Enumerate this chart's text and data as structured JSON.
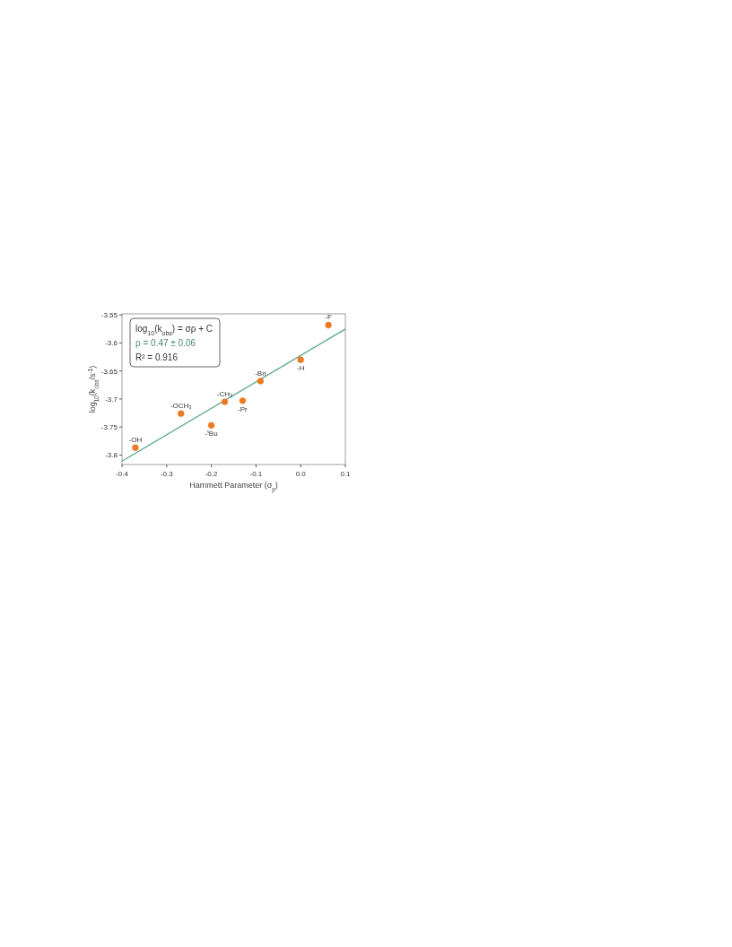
{
  "chart_data": {
    "type": "scatter",
    "xlabel": "Hammett Parameter (σ$_{p}$)",
    "ylabel": "log$_{10}$(k$_{obs}$/s$^{-1}$)",
    "xlim": [
      -0.4,
      0.1
    ],
    "ylim": [
      -3.817,
      -3.548
    ],
    "xticks": [
      {
        "value": -0.4,
        "label": "-0.4"
      },
      {
        "value": -0.3,
        "label": "-0.3"
      },
      {
        "value": -0.2,
        "label": "-0.2"
      },
      {
        "value": -0.1,
        "label": "-0.1"
      },
      {
        "value": 0,
        "label": "0.0"
      },
      {
        "value": 0.1,
        "label": "0.1"
      }
    ],
    "yticks": [
      -3.55,
      -3.6,
      -3.65,
      -3.7,
      -3.75,
      -3.8
    ],
    "series": [
      {
        "type": "scatter",
        "marker": "circle",
        "color": "#ec7a23",
        "x": [
          -0.37,
          -0.268,
          -0.2,
          -0.17,
          -0.13,
          -0.09,
          0.0,
          0.062
        ],
        "values": [
          -3.787,
          -3.726,
          -3.747,
          -3.705,
          -3.703,
          -3.668,
          -3.63,
          -3.568
        ]
      },
      {
        "type": "line",
        "marker": "none",
        "color": "#5aaa8a",
        "x": [
          -0.4,
          0.1
        ],
        "values": [
          -3.811,
          -3.575
        ]
      }
    ],
    "annotations": [
      "log$_{10}$(k$_{obs}$) = σρ + C",
      "ρ = 0.47 ± 0.06",
      "R² = 0.916",
      {
        "text": "-OH",
        "x": -0.37,
        "y": -3.787
      },
      {
        "text": "-OCH₃",
        "x": -0.268,
        "y": -3.726
      },
      {
        "text": "-$^{t}$Bu",
        "x": -0.2,
        "y": -3.747
      },
      {
        "text": "-CH₃",
        "x": -0.17,
        "y": -3.705
      },
      {
        "text": "-Pr",
        "x": -0.13,
        "y": -3.703
      },
      {
        "text": "-Bn",
        "x": -0.09,
        "y": -3.668
      },
      {
        "text": "-H",
        "x": 0.0,
        "y": -3.63
      },
      {
        "text": "-F",
        "x": 0.062,
        "y": -3.568
      }
    ]
  }
}
